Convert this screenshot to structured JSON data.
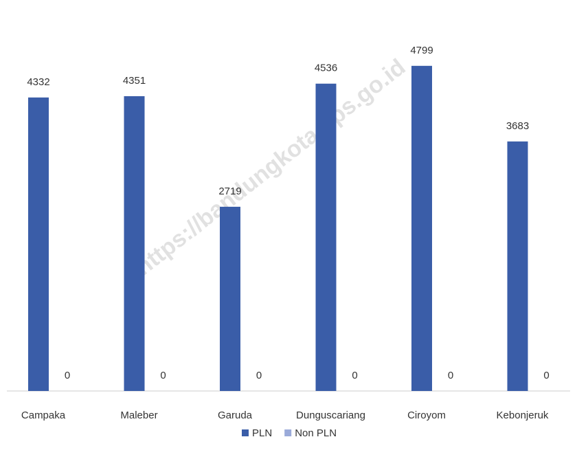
{
  "chart_data": {
    "type": "bar",
    "categories": [
      "Campaka",
      "Maleber",
      "Garuda",
      "Dunguscariang",
      "Ciroyom",
      "Kebonjeruk"
    ],
    "series": [
      {
        "name": "PLN",
        "color": "#3a5da8",
        "values": [
          4332,
          4351,
          2719,
          4536,
          4799,
          3683
        ]
      },
      {
        "name": "Non PLN",
        "color": "#9aaad9",
        "values": [
          0,
          0,
          0,
          0,
          0,
          0
        ]
      }
    ],
    "ylim": [
      0,
      5000
    ],
    "legend": "bottom",
    "watermark": "https://bandungkota.bps.go.id"
  }
}
